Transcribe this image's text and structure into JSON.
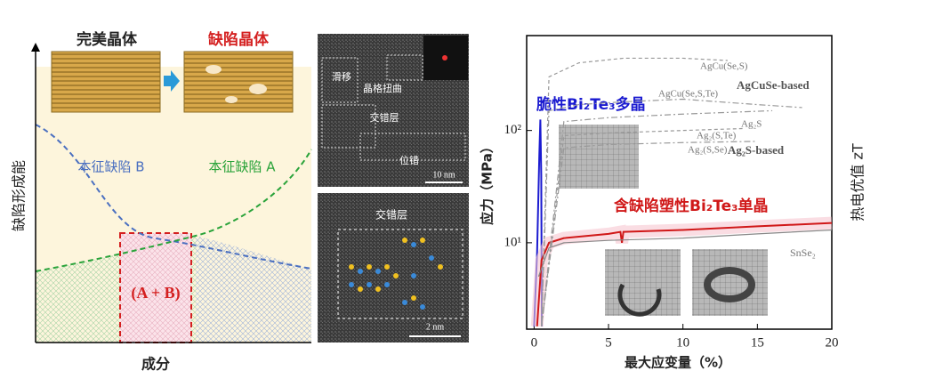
{
  "schematic": {
    "y_label": "缺陷形成能",
    "x_label": "成分",
    "perfect": "完美晶体",
    "defective": "缺陷晶体",
    "defect_b": "本征缺陷 B",
    "defect_a": "本征缺陷 A",
    "mixed": "(A + B)"
  },
  "micrographs": {
    "top": {
      "labels": [
        "滑移",
        "晶格扭曲",
        "交错层",
        "位错"
      ],
      "scale": "10 nm"
    },
    "bottom": {
      "label": "交错层",
      "scale": "2 nm"
    }
  },
  "chart_data": {
    "type": "line",
    "x_label": "最大应变量（%）",
    "y_label": "应力（MPa）",
    "y2_label": "热电优值 zT",
    "xlim": [
      -0.5,
      20
    ],
    "xticks": [
      0,
      5,
      10,
      15,
      20
    ],
    "ylim": [
      1.7,
      700
    ],
    "y_scale": "log",
    "yticks": [
      {
        "value": 10,
        "label": "10¹"
      },
      {
        "value": 100,
        "label": "10²"
      }
    ],
    "annotations": [
      "AgCuSe-based",
      "Ag₂S-based"
    ],
    "series": [
      {
        "name": "脆性Bi₂Te₃多晶",
        "color": "#1a1ad0",
        "style": "solid",
        "x": [
          0,
          0.2,
          0.35,
          0.42,
          0.48,
          0.52
        ],
        "values": [
          1.8,
          8,
          60,
          125,
          40,
          1.8
        ]
      },
      {
        "name": "含缺陷塑性Bi₂Te₃单晶",
        "color": "#d01818",
        "style": "solid",
        "x": [
          0.2,
          0.5,
          1,
          2,
          5,
          5.8,
          5.9,
          6,
          10,
          15,
          20
        ],
        "values": [
          1.8,
          7,
          10,
          11,
          12,
          12.5,
          10,
          12.5,
          13,
          14,
          15
        ]
      },
      {
        "name": "SnSe₂",
        "color": "#888888",
        "style": "solid",
        "x": [
          0.3,
          1,
          2,
          5,
          10,
          15,
          20
        ],
        "values": [
          5,
          9,
          10,
          10.5,
          11,
          12,
          13
        ]
      },
      {
        "name": "AgCu(Se,S)",
        "color": "#999999",
        "style": "dashed",
        "x": [
          0.5,
          1,
          3,
          6,
          10,
          13
        ],
        "values": [
          1.8,
          300,
          400,
          440,
          440,
          420
        ]
      },
      {
        "name": "AgCu(Se,S,Te)",
        "color": "#999999",
        "style": "dashdot",
        "x": [
          0.5,
          1,
          3,
          6,
          10,
          15,
          18
        ],
        "values": [
          1.8,
          150,
          170,
          180,
          190,
          170,
          160
        ]
      },
      {
        "name": "Ag₂S",
        "color": "#999999",
        "style": "dashdot",
        "x": [
          0.5,
          2,
          5,
          10,
          16
        ],
        "values": [
          1.8,
          120,
          130,
          140,
          150
        ]
      },
      {
        "name": "Ag₂(S,Te)",
        "color": "#999999",
        "style": "dashed",
        "x": [
          0.5,
          2,
          5,
          10,
          14
        ],
        "values": [
          1.8,
          90,
          95,
          100,
          104
        ]
      },
      {
        "name": "Ag₂(S,Se)",
        "color": "#999999",
        "style": "dashdot",
        "x": [
          0.5,
          2,
          5,
          10,
          15
        ],
        "values": [
          1.8,
          70,
          75,
          78,
          80
        ]
      }
    ]
  }
}
